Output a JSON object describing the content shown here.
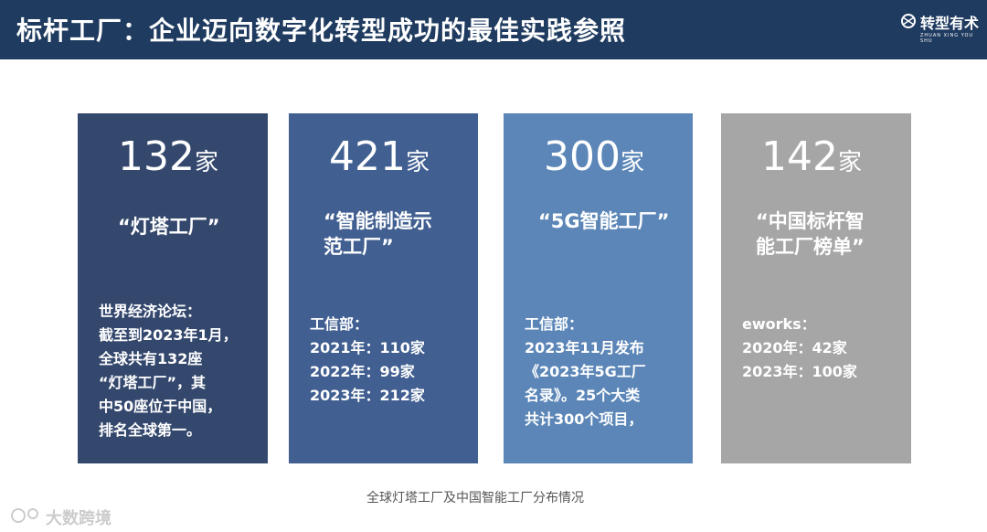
{
  "header": {
    "title": "标杆工厂：企业迈向数字化转型成功的最佳实践参照",
    "logo": {
      "name": "转型有术",
      "pinyin": "ZHUAN XING YOU SHU"
    }
  },
  "cards": [
    {
      "number": 132,
      "unit": "家",
      "name_lines": [
        "“灯塔工厂”"
      ],
      "source": "世界经济论坛：",
      "lines": [
        "截至到2023年1月，",
        "全球共有132座",
        "“灯塔工厂”，其",
        "中50座位于中国，",
        "排名全球第一。"
      ]
    },
    {
      "number": 421,
      "unit": "家",
      "name_lines": [
        "“智能制造示",
        "范工厂”"
      ],
      "source": "工信部：",
      "lines": [
        "2021年：110家",
        "2022年：99家",
        "2023年：212家"
      ]
    },
    {
      "number": 300,
      "unit": "家",
      "name_lines": [
        "“5G智能工厂”"
      ],
      "source": "工信部：",
      "lines": [
        "2023年11月发布",
        "《2023年5G工厂",
        "名录》。25个大类",
        "共计300个项目，"
      ]
    },
    {
      "number": 142,
      "unit": "家",
      "name_lines": [
        "“中国标杆智",
        "能工厂榜单”"
      ],
      "source": "eworks：",
      "lines": [
        "2020年：42家",
        "2023年：100家"
      ]
    }
  ],
  "caption": "全球灯塔工厂及中国智能工厂分布情况",
  "watermark": "大数跨境"
}
